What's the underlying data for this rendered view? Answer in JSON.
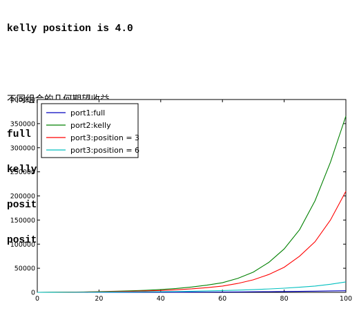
{
  "output": {
    "line1": "kelly position is 4.0",
    "line2": "",
    "line3": "不同组合的几何期望收益",
    "line4": "full position 3329.07086021",
    "line5": "kelly position 365760.379225",
    "line6": "position = 3 209627.47015",
    "line7": "position = 6 21544.7195894"
  },
  "chart_data": {
    "type": "line",
    "title": "",
    "xlabel": "",
    "ylabel": "",
    "xlim": [
      0,
      100
    ],
    "ylim": [
      0,
      400000
    ],
    "xticks": [
      0,
      20,
      40,
      60,
      80,
      100
    ],
    "yticks": [
      0,
      50000,
      100000,
      150000,
      200000,
      250000,
      300000,
      350000,
      400000
    ],
    "legend_position": "top-left",
    "x": [
      0,
      5,
      10,
      15,
      20,
      25,
      30,
      35,
      40,
      45,
      50,
      55,
      60,
      65,
      70,
      75,
      80,
      85,
      90,
      95,
      100
    ],
    "series": [
      {
        "name": "port1:full",
        "color": "#0000bf",
        "values": [
          0,
          10,
          20,
          40,
          60,
          90,
          130,
          180,
          250,
          330,
          430,
          550,
          700,
          880,
          1100,
          1380,
          1700,
          2050,
          2450,
          2900,
          3329
        ]
      },
      {
        "name": "port2:kelly",
        "color": "#008000",
        "values": [
          0,
          200,
          500,
          900,
          1500,
          2200,
          3100,
          4300,
          5800,
          8000,
          11000,
          15000,
          20000,
          29000,
          42000,
          62000,
          90000,
          130000,
          190000,
          270000,
          365760
        ]
      },
      {
        "name": "port3:position = 3",
        "color": "#ff0000",
        "values": [
          0,
          150,
          350,
          650,
          1000,
          1500,
          2100,
          2900,
          3900,
          5300,
          7200,
          9800,
          13000,
          18500,
          26000,
          37000,
          52000,
          75000,
          105000,
          150000,
          209627
        ]
      },
      {
        "name": "port3:position = 6",
        "color": "#00bfbf",
        "values": [
          0,
          80,
          180,
          300,
          450,
          650,
          850,
          1100,
          1400,
          1800,
          2300,
          2900,
          3700,
          4600,
          5700,
          7000,
          8600,
          10600,
          13000,
          16800,
          21545
        ]
      }
    ]
  }
}
